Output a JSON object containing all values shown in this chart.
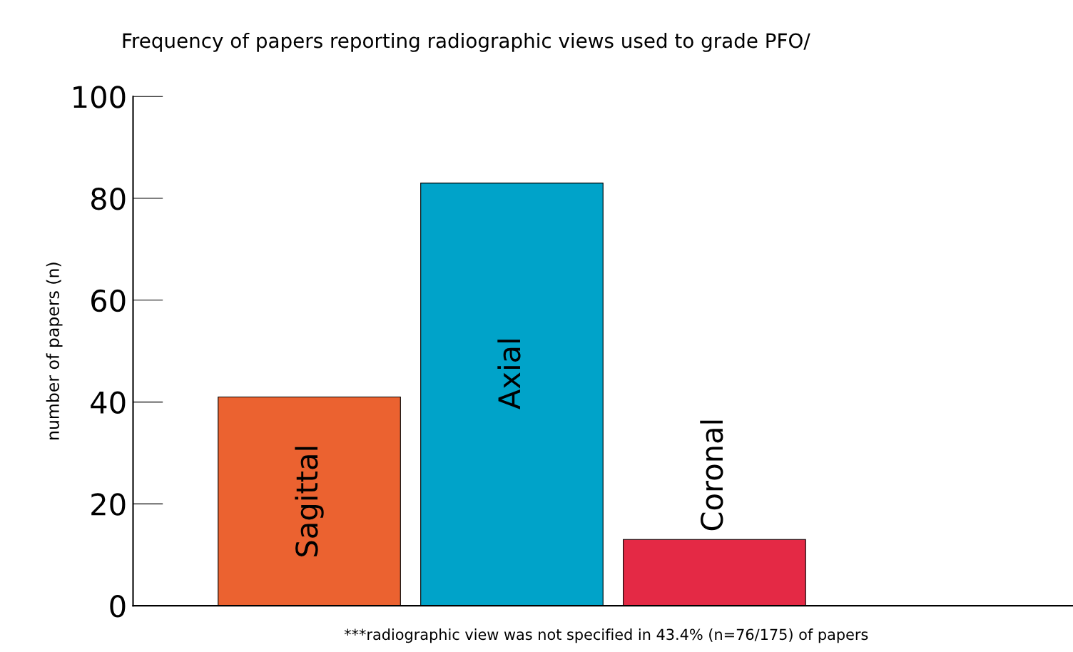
{
  "chart_data": {
    "type": "bar",
    "title": "Frequency of papers reporting radiographic views used to grade PFO/",
    "ylabel": "number of papers (n)",
    "categories": [
      "Sagittal",
      "Axial",
      "Coronal"
    ],
    "values": [
      41,
      83,
      13
    ],
    "colors": [
      "#eb6230",
      "#00a3c9",
      "#e42945"
    ],
    "ylim": [
      0,
      100
    ],
    "yticks": [
      0,
      20,
      40,
      60,
      80,
      100
    ],
    "grid": false,
    "annotations": [
      "***radiographic view was not specified in 43.4% (n=76/175) of papers"
    ]
  }
}
